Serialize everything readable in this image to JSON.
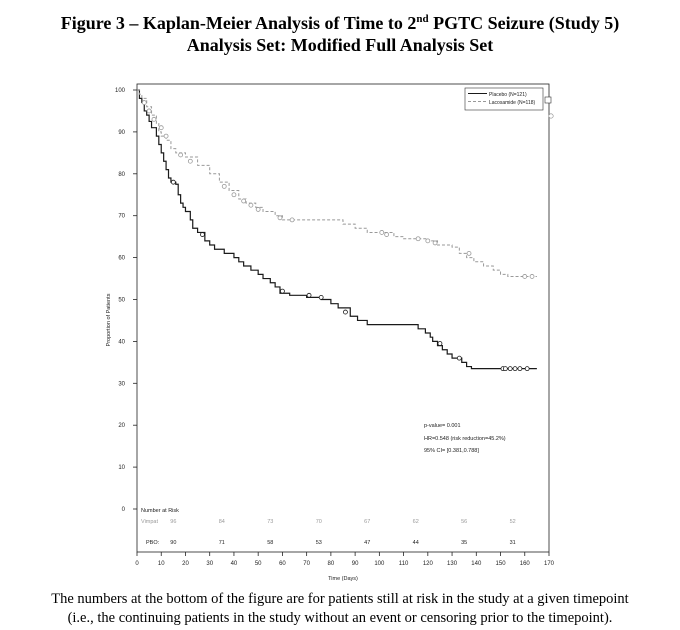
{
  "figure": {
    "title_prefix": "Figure 3 – Kaplan-Meier Analysis of Time to 2",
    "title_sup": "nd",
    "title_suffix": " PGTC Seizure (Study 5)",
    "subtitle": "Analysis Set: Modified Full Analysis Set",
    "caption_line1": "The numbers at the bottom of the figure are for patients still at risk in the study at a given timepoint",
    "caption_line2": "(i.e., the continuing patients in the study without an event or censoring prior to the timepoint)."
  },
  "chart_data": {
    "type": "line",
    "step": true,
    "xlabel": "Time (Days)",
    "ylabel": "Proportion of Patients",
    "xlim": [
      0,
      170
    ],
    "ylim": [
      0,
      100
    ],
    "xticks": [
      0,
      10,
      20,
      30,
      40,
      50,
      60,
      70,
      80,
      90,
      100,
      110,
      120,
      130,
      140,
      150,
      160,
      170
    ],
    "yticks": [
      0,
      10,
      20,
      30,
      40,
      50,
      60,
      70,
      80,
      90,
      100
    ],
    "legend_position": "top-right",
    "series": [
      {
        "name": "Placebo (N=121)",
        "color": "#1a1a1a",
        "dash": "solid",
        "points": [
          [
            0,
            100
          ],
          [
            1,
            98
          ],
          [
            2,
            97
          ],
          [
            3,
            95
          ],
          [
            4,
            94
          ],
          [
            5,
            92.5
          ],
          [
            6,
            91
          ],
          [
            8,
            89
          ],
          [
            9,
            87
          ],
          [
            10,
            85
          ],
          [
            11,
            83
          ],
          [
            12,
            81
          ],
          [
            13,
            79
          ],
          [
            14,
            78
          ],
          [
            16,
            77.5
          ],
          [
            17,
            75
          ],
          [
            18,
            73
          ],
          [
            19,
            72
          ],
          [
            20,
            71
          ],
          [
            22,
            69
          ],
          [
            23,
            67
          ],
          [
            25,
            66
          ],
          [
            28,
            64
          ],
          [
            30,
            63
          ],
          [
            32,
            62
          ],
          [
            36,
            61
          ],
          [
            40,
            60
          ],
          [
            42,
            59
          ],
          [
            44,
            58
          ],
          [
            47,
            57
          ],
          [
            50,
            56
          ],
          [
            52,
            55
          ],
          [
            55,
            54
          ],
          [
            57,
            53
          ],
          [
            59,
            51.5
          ],
          [
            63,
            51
          ],
          [
            70,
            50.5
          ],
          [
            76,
            50
          ],
          [
            80,
            49
          ],
          [
            83,
            48
          ],
          [
            88,
            46
          ],
          [
            91,
            45
          ],
          [
            95,
            44
          ],
          [
            114,
            44
          ],
          [
            116,
            43
          ],
          [
            119,
            42
          ],
          [
            121,
            41
          ],
          [
            122,
            40
          ],
          [
            124,
            39
          ],
          [
            126,
            38
          ],
          [
            128,
            37
          ],
          [
            130,
            36
          ],
          [
            134,
            35
          ],
          [
            136,
            34
          ],
          [
            138,
            33.5
          ],
          [
            162,
            33.5
          ],
          [
            165,
            33.5
          ]
        ],
        "censored": [
          [
            15,
            78
          ],
          [
            27,
            65.5
          ],
          [
            60,
            52
          ],
          [
            71,
            51
          ],
          [
            76,
            50.5
          ],
          [
            86,
            47
          ],
          [
            125,
            39.5
          ],
          [
            133,
            36
          ],
          [
            151,
            33.5
          ],
          [
            152,
            33.5
          ],
          [
            154,
            33.5
          ],
          [
            156,
            33.5
          ],
          [
            158,
            33.5
          ],
          [
            161,
            33.5
          ]
        ]
      },
      {
        "name": "Lacosamide (N=118)",
        "color": "#999999",
        "dash": "dashed",
        "points": [
          [
            0,
            100
          ],
          [
            1,
            99
          ],
          [
            2,
            98
          ],
          [
            4,
            96
          ],
          [
            6,
            94
          ],
          [
            8,
            92
          ],
          [
            9,
            90
          ],
          [
            10,
            89
          ],
          [
            12,
            88
          ],
          [
            14,
            86
          ],
          [
            16,
            85
          ],
          [
            20,
            84
          ],
          [
            25,
            82
          ],
          [
            30,
            80
          ],
          [
            34,
            78
          ],
          [
            38,
            76
          ],
          [
            42,
            74
          ],
          [
            45,
            73
          ],
          [
            49,
            72
          ],
          [
            52,
            71
          ],
          [
            57,
            70
          ],
          [
            60,
            69
          ],
          [
            65,
            69
          ],
          [
            85,
            68
          ],
          [
            90,
            67
          ],
          [
            95,
            66
          ],
          [
            100,
            66
          ],
          [
            106,
            65
          ],
          [
            110,
            64.5
          ],
          [
            120,
            64
          ],
          [
            124,
            63
          ],
          [
            130,
            62.5
          ],
          [
            133,
            61
          ],
          [
            136,
            60
          ],
          [
            139,
            59
          ],
          [
            143,
            58
          ],
          [
            147,
            57
          ],
          [
            150,
            56
          ],
          [
            153,
            55.5
          ],
          [
            165,
            55.5
          ]
        ],
        "censored": [
          [
            3,
            97
          ],
          [
            5,
            95
          ],
          [
            7,
            93
          ],
          [
            10,
            91
          ],
          [
            12,
            89
          ],
          [
            18,
            84.5
          ],
          [
            22,
            83
          ],
          [
            36,
            77
          ],
          [
            40,
            75
          ],
          [
            44,
            73.5
          ],
          [
            47,
            72.5
          ],
          [
            50,
            71.5
          ],
          [
            59,
            69.5
          ],
          [
            64,
            69
          ],
          [
            101,
            66
          ],
          [
            103,
            65.5
          ],
          [
            116,
            64.5
          ],
          [
            120,
            64
          ],
          [
            123,
            63.5
          ],
          [
            137,
            61
          ],
          [
            160,
            55.5
          ],
          [
            163,
            55.5
          ]
        ]
      }
    ],
    "annotations": {
      "p_value": "p-value= 0.001",
      "hr": "HR=0.548 (risk reduction=45.2%)",
      "ci": "95% CI= [0.381,0.788]"
    },
    "at_risk": {
      "title": "Number at Risk",
      "times": [
        15,
        35,
        55,
        75,
        95,
        115,
        135,
        155
      ],
      "rows": [
        {
          "label": "Vimpat",
          "values": [
            96,
            84,
            73,
            70,
            67,
            62,
            56,
            52
          ]
        },
        {
          "label": "PBO:",
          "values": [
            90,
            71,
            58,
            53,
            47,
            44,
            35,
            31
          ]
        }
      ]
    }
  }
}
